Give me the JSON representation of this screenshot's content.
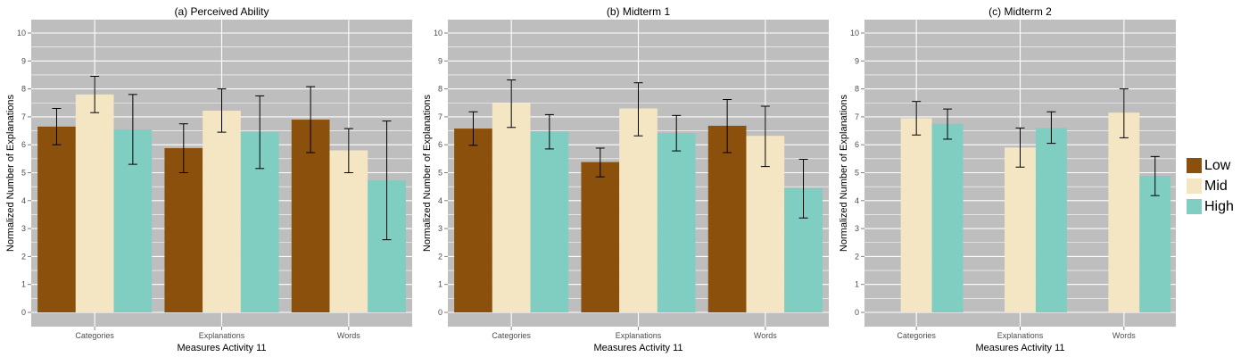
{
  "colors": {
    "panel_bg": "#BEBEBE",
    "grid": "#FFFFFF",
    "Low": "#8B500C",
    "Mid": "#F5E6C3",
    "High": "#80CDC1",
    "error_bar": "#000000"
  },
  "legend": {
    "position": "right",
    "items": [
      {
        "label": "Low",
        "color": "#8B500C"
      },
      {
        "label": "Mid",
        "color": "#F5E6C3"
      },
      {
        "label": "High",
        "color": "#80CDC1"
      }
    ]
  },
  "chart_data": [
    {
      "type": "bar",
      "title": "(a) Perceived Ability",
      "xlabel": "Measures Activity 11",
      "ylabel": "Normalized Number of Explanations",
      "ylim": [
        0,
        10
      ],
      "yticks": [
        "0",
        "1",
        "2",
        "3",
        "4",
        "5",
        "6",
        "7",
        "8",
        "9",
        "10"
      ],
      "grid": true,
      "categories": [
        "Categories",
        "Explanations",
        "Words"
      ],
      "series": [
        {
          "name": "Low",
          "values": [
            6.65,
            5.88,
            6.9
          ],
          "err_low": [
            6.0,
            5.0,
            5.72
          ],
          "err_high": [
            7.3,
            6.75,
            8.08
          ]
        },
        {
          "name": "Mid",
          "values": [
            7.8,
            7.22,
            5.8
          ],
          "err_low": [
            7.15,
            6.45,
            5.0
          ],
          "err_high": [
            8.45,
            8.0,
            6.58
          ]
        },
        {
          "name": "High",
          "values": [
            6.55,
            6.45,
            4.72
          ],
          "err_low": [
            5.3,
            5.15,
            2.6
          ],
          "err_high": [
            7.8,
            7.75,
            6.85
          ]
        }
      ]
    },
    {
      "type": "bar",
      "title": "(b) Midterm 1",
      "xlabel": "Measures Activity 11",
      "ylabel": "Normalized Number of Explanations",
      "ylim": [
        0,
        10
      ],
      "yticks": [
        "0",
        "1",
        "2",
        "3",
        "4",
        "5",
        "6",
        "7",
        "8",
        "9",
        "10"
      ],
      "grid": true,
      "categories": [
        "Categories",
        "Explanations",
        "Words"
      ],
      "series": [
        {
          "name": "Low",
          "values": [
            6.58,
            5.38,
            6.68
          ],
          "err_low": [
            5.98,
            4.85,
            5.72
          ],
          "err_high": [
            7.18,
            5.88,
            7.62
          ]
        },
        {
          "name": "Mid",
          "values": [
            7.5,
            7.3,
            6.32
          ],
          "err_low": [
            6.62,
            6.32,
            5.22
          ],
          "err_high": [
            8.32,
            8.22,
            7.38
          ]
        },
        {
          "name": "High",
          "values": [
            6.48,
            6.42,
            4.45
          ],
          "err_low": [
            5.85,
            5.78,
            3.38
          ],
          "err_high": [
            7.08,
            7.05,
            5.48
          ]
        }
      ]
    },
    {
      "type": "bar",
      "title": "(c) Midterm 2",
      "xlabel": "Measures Activity 11",
      "ylabel": "Normalized Number of Explanations",
      "ylim": [
        0,
        10
      ],
      "yticks": [
        "0",
        "1",
        "2",
        "3",
        "4",
        "5",
        "6",
        "7",
        "8",
        "9",
        "10"
      ],
      "grid": true,
      "categories": [
        "Categories",
        "Explanations",
        "Words"
      ],
      "series": [
        {
          "name": "Low",
          "values": [
            null,
            null,
            null
          ],
          "err_low": [
            null,
            null,
            null
          ],
          "err_high": [
            null,
            null,
            null
          ]
        },
        {
          "name": "Mid",
          "values": [
            6.95,
            5.9,
            7.15
          ],
          "err_low": [
            6.35,
            5.2,
            6.25
          ],
          "err_high": [
            7.55,
            6.6,
            8.0
          ]
        },
        {
          "name": "High",
          "values": [
            6.75,
            6.6,
            4.88
          ],
          "err_low": [
            6.2,
            6.05,
            4.18
          ],
          "err_high": [
            7.28,
            7.18,
            5.58
          ]
        }
      ]
    }
  ]
}
